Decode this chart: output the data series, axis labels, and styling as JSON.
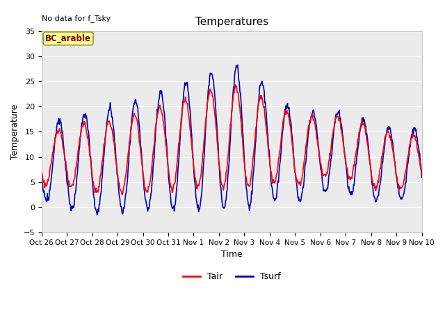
{
  "title": "Temperatures",
  "xlabel": "Time",
  "ylabel": "Temperature",
  "ylim": [
    -5,
    35
  ],
  "no_data_text": "No data for f_Tsky",
  "site_label": "BC_arable",
  "tair_color": "#FF0000",
  "tsurf_color": "#0000BB",
  "tair_label": "Tair",
  "tsurf_label": "Tsurf",
  "background_color": "#EBEBEB",
  "xtick_labels": [
    "Oct 26",
    "Oct 27",
    "Oct 28",
    "Oct 29",
    "Oct 30",
    "Oct 31",
    "Nov 1",
    "Nov 2",
    "Nov 3",
    "Nov 4",
    "Nov 5",
    "Nov 6",
    "Nov 7",
    "Nov 8",
    "Nov 9",
    "Nov 10"
  ],
  "grid_color": "#FFFFFF",
  "line_width": 1.2,
  "figsize": [
    6.4,
    4.8
  ],
  "dpi": 100
}
